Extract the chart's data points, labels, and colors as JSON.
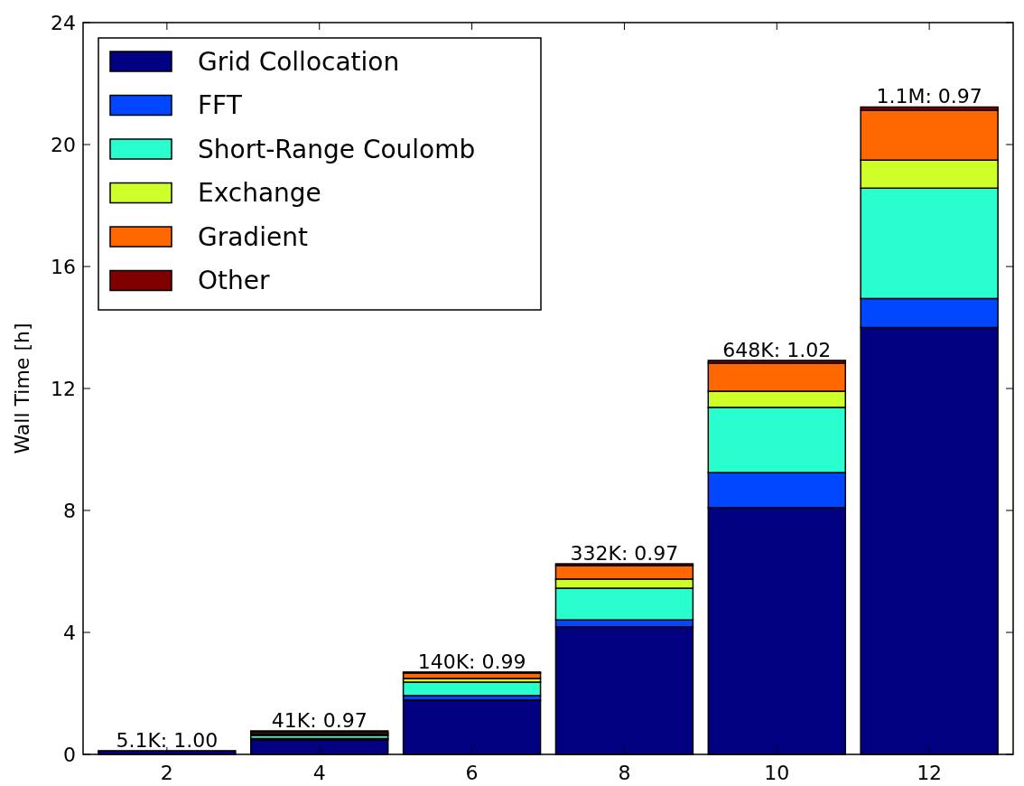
{
  "chart_data": {
    "type": "bar",
    "stacked": true,
    "ylabel": "Wall Time [h]",
    "categories": [
      "2",
      "4",
      "6",
      "8",
      "10",
      "12"
    ],
    "series": [
      {
        "name": "Grid Collocation",
        "color": "#000080",
        "values": [
          0.12,
          0.48,
          1.78,
          4.18,
          8.09,
          14.0
        ]
      },
      {
        "name": "FFT",
        "color": "#0047ff",
        "values": [
          null,
          0.04,
          0.15,
          0.23,
          1.15,
          0.95
        ]
      },
      {
        "name": "Short-Range Coulomb",
        "color": "#29ffce",
        "values": [
          null,
          0.1,
          0.44,
          1.04,
          2.14,
          3.62
        ]
      },
      {
        "name": "Exchange",
        "color": "#ceff29",
        "values": [
          null,
          0.04,
          0.12,
          0.3,
          0.53,
          0.92
        ]
      },
      {
        "name": "Gradient",
        "color": "#ff6800",
        "values": [
          null,
          0.06,
          0.18,
          0.44,
          0.92,
          1.63
        ]
      },
      {
        "name": "Other",
        "color": "#800000",
        "values": [
          null,
          0.05,
          0.03,
          0.06,
          0.09,
          0.11
        ]
      }
    ],
    "ylim": [
      0,
      24
    ],
    "yticks": [
      0,
      4,
      8,
      12,
      16,
      20,
      24
    ],
    "grid": false,
    "legend": "top left",
    "annotations": [
      {
        "text": "5.1K: 1.00",
        "x": "2",
        "y": 0.12
      },
      {
        "text": "41K: 0.97",
        "x": "4",
        "y": 0.77
      },
      {
        "text": "140K: 0.99",
        "x": "6",
        "y": 2.7
      },
      {
        "text": "332K: 0.97",
        "x": "8",
        "y": 6.25
      },
      {
        "text": "648K: 1.02",
        "x": "10",
        "y": 12.92
      },
      {
        "text": "1.1M: 0.97",
        "x": "12",
        "y": 21.23
      }
    ]
  }
}
